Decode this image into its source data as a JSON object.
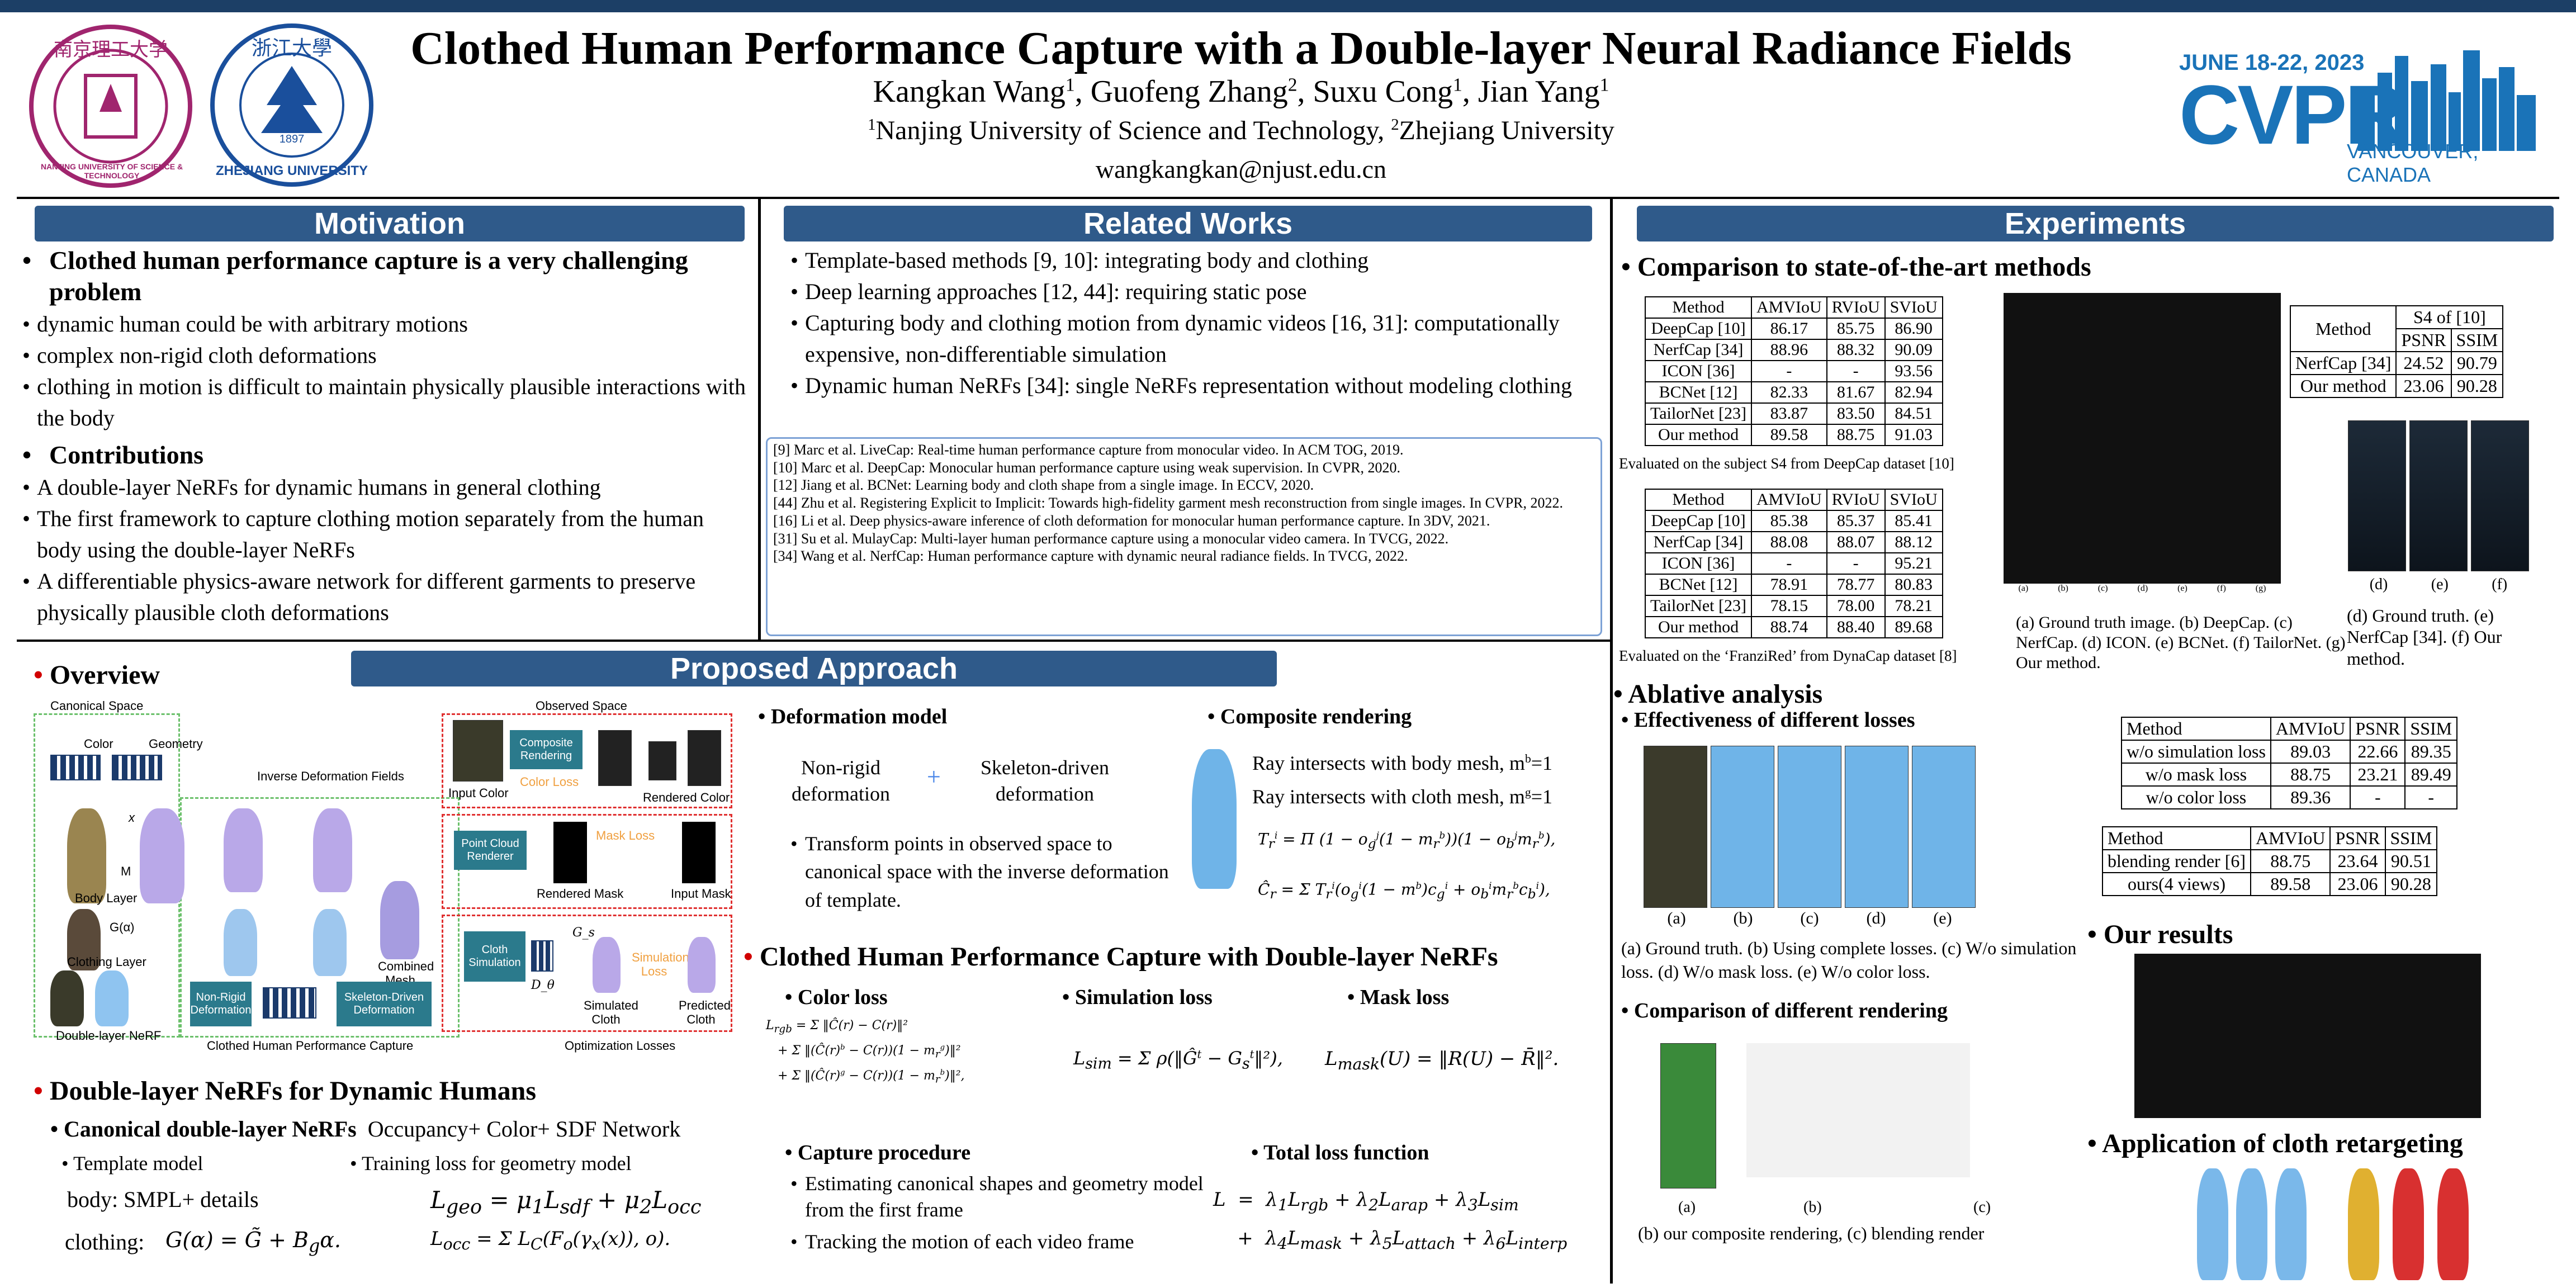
{
  "header": {
    "title": "Clothed Human Performance Capture with a Double-layer Neural Radiance Fields",
    "authors": [
      {
        "name": "Kangkan Wang",
        "sup": "1"
      },
      {
        "name": "Guofeng Zhang",
        "sup": "2"
      },
      {
        "name": "Suxu Cong",
        "sup": "1"
      },
      {
        "name": "Jian Yang",
        "sup": "1"
      }
    ],
    "affil1_sup": "1",
    "affil1": "Nanjing University of Science and Technology, ",
    "affil2_sup": "2",
    "affil2": "Zhejiang University",
    "email": "wangkangkan@njust.edu.cn",
    "logo1_text": "NANJING UNIVERSITY OF SCIENCE & TECHNOLOGY",
    "logo2_text": "ZHEJIANG UNIVERSITY",
    "logo2_year": "1897",
    "cvpr_dates": "JUNE 18-22, 2023",
    "cvpr_name": "CVPR",
    "cvpr_city": "VANCOUVER, CANADA",
    "colors": {
      "bar": "#1c3f66",
      "section": "#2f5a8a",
      "cvpr": "#1a73b8",
      "logo1": "#a0256e",
      "logo2": "#1a4f9c"
    }
  },
  "motivation": {
    "title": "Motivation",
    "h1": "Clothed human performance capture is a very challenging problem",
    "items": [
      "dynamic human could be with arbitrary motions",
      "complex non-rigid cloth deformations",
      "clothing in motion is difficult to maintain physically plausible interactions with the body"
    ],
    "h2": "Contributions",
    "contrib": [
      "A double-layer NeRFs for dynamic humans in general clothing",
      "The first framework to capture clothing motion separately from the human body using the double-layer NeRFs",
      "A differentiable physics-aware network for different garments to preserve physically plausible cloth deformations"
    ]
  },
  "related": {
    "title": "Related Works",
    "items": [
      "Template-based methods [9, 10]: integrating body and clothing",
      "Deep learning approaches [12, 44]: requiring static pose",
      "Capturing body and clothing motion from dynamic videos [16, 31]: computationally expensive, non-differentiable simulation",
      "Dynamic human NeRFs [34]: single NeRFs representation without modeling clothing"
    ],
    "refs": [
      "[9]  Marc et al. LiveCap: Real-time human performance capture from monocular video. In ACM TOG, 2019.",
      "[10] Marc et al. DeepCap: Monocular human performance capture using weak supervision. In CVPR, 2020.",
      "[12] Jiang et al. BCNet: Learning body and cloth shape from a single image. In ECCV, 2020.",
      "[44] Zhu et al. Registering Explicit to Implicit: Towards high-fidelity garment mesh reconstruction from single images. In CVPR, 2022.",
      "[16] Li et al. Deep physics-aware inference of cloth deformation for monocular human performance capture. In 3DV, 2021.",
      "[31] Su et al. MulayCap: Multi-layer human performance capture using a monocular video camera. In TVCG, 2022.",
      "[34] Wang et al. NerfCap: Human performance capture with dynamic neural radiance fields. In TVCG, 2022."
    ]
  },
  "approach": {
    "title": "Proposed Approach",
    "overview": "Overview",
    "diagram": {
      "canonical": "Canonical Space",
      "observed": "Observed Space",
      "color": "Color",
      "geometry": "Geometry",
      "inverse": "Inverse Deformation Fields",
      "body_layer": "Body Layer",
      "clothing_layer": "Clothing Layer",
      "double_nerf": "Double-layer NeRF",
      "m": "M",
      "ga": "G(α)",
      "x": "x",
      "combined": "Combined Mesh",
      "input_color": "Input Color",
      "rendered_color": "Rendered Color",
      "composite": "Composite Rendering",
      "color_loss": "Color Loss",
      "pcr": "Point Cloud Renderer",
      "mask_loss": "Mask Loss",
      "rendered_mask": "Rendered Mask",
      "input_mask": "Input Mask",
      "nonrigid": "Non-Rigid Deformation",
      "skeleton": "Skeleton-Driven Deformation",
      "cloth_sim": "Cloth Simulation",
      "sim_loss": "Simulation Loss",
      "simulated": "Simulated Cloth",
      "predicted": "Predicted Cloth",
      "cap_label": "Clothed Human Performance Capture",
      "opt_label": "Optimization Losses",
      "ds": "D_θ",
      "gs": "G_s"
    },
    "deformation": {
      "title": "Deformation model",
      "a": "Non-rigid deformation",
      "b": "Skeleton-driven deformation",
      "plus": "+",
      "desc": "Transform points in observed space to canonical space with the inverse deformation of template."
    },
    "composite": {
      "title": "Composite rendering",
      "l1": "Ray intersects with body mesh, m",
      "l1s": "b",
      "l1e": "=1",
      "l2": "Ray intersects with cloth mesh, m",
      "l2s": "g",
      "l2e": "=1"
    },
    "dl_title": "Double-layer NeRFs for Dynamic Humans",
    "canon_title": "Canonical double-layer NeRFs",
    "canon_tail": "Occupancy+ Color+ SDF Network",
    "template": "Template model",
    "training": "Training loss for geometry model",
    "body": "body:   SMPL+ details",
    "clothing": "clothing:",
    "chpc_title": "Clothed Human Performance Capture with Double-layer NeRFs",
    "color_loss": "Color loss",
    "sim_loss": "Simulation loss",
    "mask_loss": "Mask loss",
    "capture_title": "Capture procedure",
    "capture": [
      "Estimating canonical shapes and geometry model from the first frame",
      "Tracking the motion of each video frame"
    ],
    "total_title": "Total loss function"
  },
  "experiments": {
    "title": "Experiments",
    "cmp_title": "Comparison to state-of-the-art methods",
    "cols": [
      "Method",
      "AMVIoU",
      "RVIoU",
      "SVIoU"
    ],
    "table1": [
      [
        "DeepCap [10]",
        "86.17",
        "85.75",
        "86.90"
      ],
      [
        "NerfCap [34]",
        "88.96",
        "88.32",
        "90.09"
      ],
      [
        "ICON [36]",
        "-",
        "-",
        "93.56"
      ],
      [
        "BCNet [12]",
        "82.33",
        "81.67",
        "82.94"
      ],
      [
        "TailorNet [23]",
        "83.87",
        "83.50",
        "84.51"
      ],
      [
        "Our method",
        "89.58",
        "88.75",
        "91.03"
      ]
    ],
    "cap1": "Evaluated on the subject S4 from DeepCap dataset [10]",
    "table2": [
      [
        "DeepCap [10]",
        "85.38",
        "85.37",
        "85.41"
      ],
      [
        "NerfCap [34]",
        "88.08",
        "88.07",
        "88.12"
      ],
      [
        "ICON [36]",
        "-",
        "-",
        "95.21"
      ],
      [
        "BCNet [12]",
        "78.91",
        "78.77",
        "80.83"
      ],
      [
        "TailorNet [23]",
        "78.15",
        "78.00",
        "78.21"
      ],
      [
        "Our method",
        "88.74",
        "88.40",
        "89.68"
      ]
    ],
    "cap2": "Evaluated on the ‘FranziRed’ from DynaCap dataset [8]",
    "grid_labels": [
      "(a)",
      "(b)",
      "(c)",
      "(d)",
      "(e)",
      "(f)",
      "(g)"
    ],
    "grid_caption": "(a) Ground truth image. (b) DeepCap. (c) NerfCap. (d) ICON. (e) BCNet. (f) TailorNet. (g) Our method.",
    "s4": {
      "h1": "Method",
      "h2": "S4 of [10]",
      "h3": "PSNR",
      "h4": "SSIM",
      "rows": [
        [
          "NerfCap [34]",
          "24.52",
          "90.79"
        ],
        [
          "Our method",
          "23.06",
          "90.28"
        ]
      ]
    },
    "def_labels": [
      "(d)",
      "(e)",
      "(f)"
    ],
    "def_caption": "(d) Ground truth. (e) NerfCap [34]. (f) Our method.",
    "abl_title": "Ablative analysis",
    "eff_title": "Effectiveness of different losses",
    "abl_labels": [
      "(a)",
      "(b)",
      "(c)",
      "(d)",
      "(e)"
    ],
    "abl_caption": "(a) Ground truth. (b) Using complete losses. (c) W/o simulation loss. (d) W/o mask loss. (e) W/o color loss.",
    "abl_cols": [
      "Method",
      "AMVIoU",
      "PSNR",
      "SSIM"
    ],
    "abl_table": [
      [
        "w/o simulation loss",
        "89.03",
        "22.66",
        "89.35"
      ],
      [
        "w/o mask loss",
        "88.75",
        "23.21",
        "89.49"
      ],
      [
        "w/o color loss",
        "89.36",
        "-",
        "-"
      ]
    ],
    "blend_table": [
      [
        "blending render [6]",
        "88.75",
        "23.64",
        "90.51"
      ],
      [
        "ours(4 views)",
        "89.58",
        "23.06",
        "90.28"
      ]
    ],
    "cmp_render_title": "Comparison of different rendering",
    "render_labels": [
      "(a)",
      "(b)",
      "(c)"
    ],
    "render_caption": "(b) our composite rendering, (c) blending render",
    "results_title": "Our results",
    "retarget_title": "Application of cloth retargeting"
  }
}
